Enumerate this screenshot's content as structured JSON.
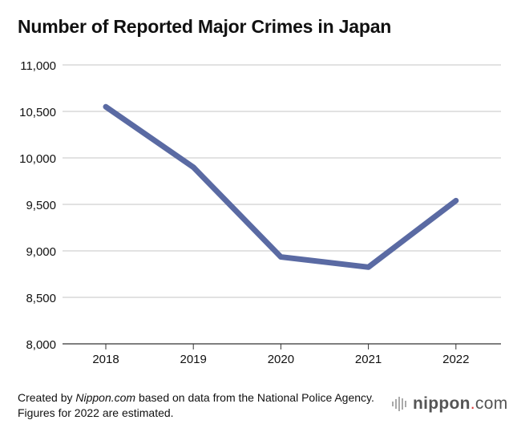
{
  "chart_data": {
    "type": "line",
    "title": "Number of Reported Major Crimes in Japan",
    "xlabel": "",
    "ylabel": "",
    "categories": [
      "2018",
      "2019",
      "2020",
      "2021",
      "2022"
    ],
    "series": [
      {
        "values": [
          10550,
          9900,
          8935,
          8825,
          9540
        ],
        "color": "#5a6aa3"
      }
    ],
    "ylim": [
      8000,
      11000
    ],
    "yticks": [
      8000,
      8500,
      9000,
      9500,
      10000,
      10500,
      11000
    ],
    "ytick_labels": [
      "8,000",
      "8,500",
      "9,000",
      "9,500",
      "10,000",
      "10,500",
      "11,000"
    ],
    "grid": true,
    "grid_color": "#d0d0d0"
  },
  "footer": {
    "prefix": "Created by ",
    "source": "Nippon.com",
    "suffix": " based on data from the National Police Agency. Figures for 2022 are estimated."
  },
  "logo": {
    "text_main": "nippon",
    "text_dot": ".",
    "text_tail": "com"
  }
}
